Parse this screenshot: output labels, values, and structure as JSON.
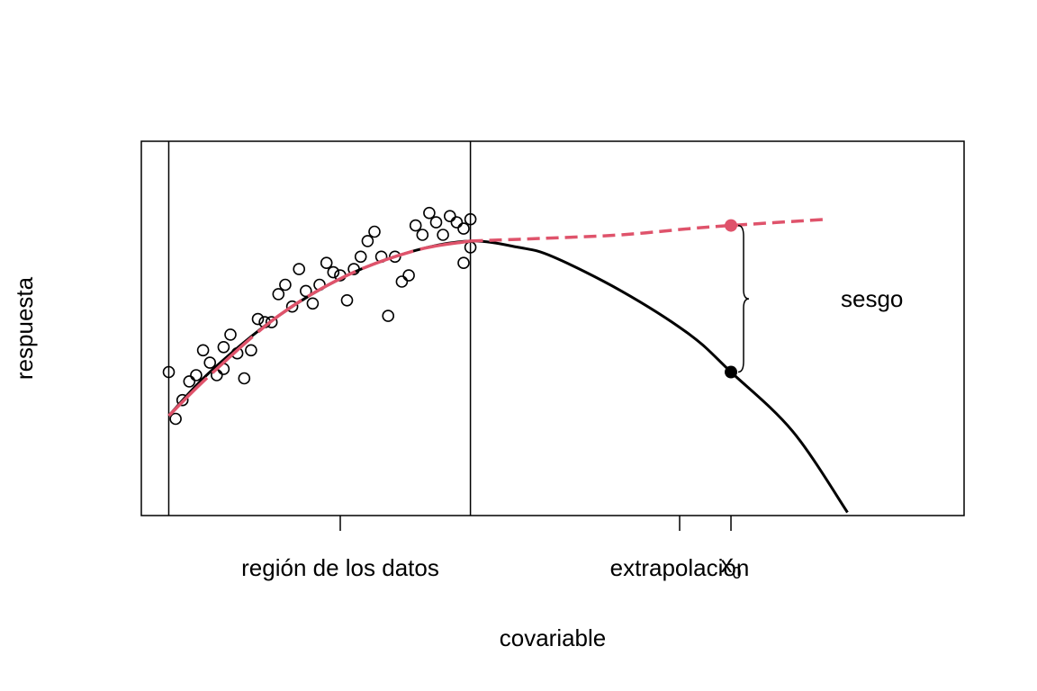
{
  "chart_data": {
    "type": "scatter",
    "xlabel": "covariable",
    "ylabel": "respuesta",
    "xlim": [
      0,
      1.2
    ],
    "ylim": [
      0,
      1.2
    ],
    "tick_labels": [
      "región de los datos",
      "extrapolación"
    ],
    "x0_label": "x",
    "x0_subscript": "0",
    "region_bounds": [
      0.04,
      0.48
    ],
    "x0": 0.86,
    "bias_label": "sesgo",
    "colors": {
      "data": "#000000",
      "true_curve": "#000000",
      "fit": "#DF536B"
    },
    "true_curve": {
      "x": [
        0.04,
        0.1,
        0.2,
        0.3,
        0.4,
        0.48,
        0.55,
        0.6,
        0.7,
        0.8,
        0.86,
        0.95,
        1.03
      ],
      "y": [
        0.32,
        0.46,
        0.64,
        0.77,
        0.85,
        0.88,
        0.86,
        0.83,
        0.72,
        0.58,
        0.46,
        0.27,
        0.01
      ]
    },
    "fitted_curve": {
      "x": [
        0.04,
        0.1,
        0.2,
        0.3,
        0.4,
        0.48,
        0.6,
        0.7,
        0.8,
        0.86,
        1.0
      ],
      "y": [
        0.32,
        0.45,
        0.64,
        0.77,
        0.85,
        0.88,
        0.89,
        0.9,
        0.92,
        0.93,
        0.95
      ]
    },
    "points": {
      "x": [
        0.04,
        0.05,
        0.06,
        0.07,
        0.08,
        0.09,
        0.1,
        0.11,
        0.12,
        0.12,
        0.13,
        0.14,
        0.15,
        0.16,
        0.17,
        0.18,
        0.19,
        0.2,
        0.21,
        0.22,
        0.23,
        0.24,
        0.25,
        0.26,
        0.27,
        0.28,
        0.29,
        0.3,
        0.31,
        0.32,
        0.33,
        0.34,
        0.35,
        0.36,
        0.37,
        0.38,
        0.39,
        0.4,
        0.41,
        0.42,
        0.43,
        0.44,
        0.45,
        0.46,
        0.47,
        0.47,
        0.48,
        0.48
      ],
      "y": [
        0.46,
        0.31,
        0.37,
        0.43,
        0.45,
        0.53,
        0.49,
        0.45,
        0.54,
        0.47,
        0.58,
        0.52,
        0.44,
        0.53,
        0.63,
        0.62,
        0.62,
        0.71,
        0.74,
        0.67,
        0.79,
        0.72,
        0.68,
        0.74,
        0.81,
        0.78,
        0.77,
        0.69,
        0.79,
        0.83,
        0.88,
        0.91,
        0.83,
        0.64,
        0.83,
        0.75,
        0.77,
        0.93,
        0.9,
        0.97,
        0.94,
        0.9,
        0.96,
        0.94,
        0.92,
        0.81,
        0.86,
        0.95
      ]
    }
  }
}
